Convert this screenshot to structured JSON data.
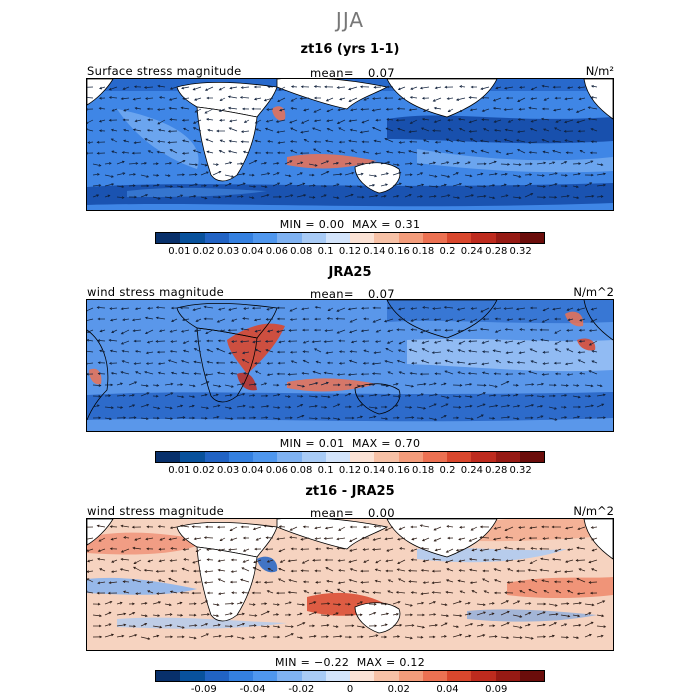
{
  "figure": {
    "season": "JJA"
  },
  "palettes": {
    "seq": [
      "#08306b",
      "#08519c",
      "#2163c4",
      "#3480e0",
      "#4f97ee",
      "#7fb2f2",
      "#a8cbf6",
      "#d3e4fb",
      "#fbe2d5",
      "#f7c1a6",
      "#f39c7b",
      "#ec7152",
      "#d9472d",
      "#be2b1e",
      "#961a14",
      "#6b0d0b"
    ],
    "div": [
      "#08306b",
      "#08519c",
      "#2163c4",
      "#3480e0",
      "#4f97ee",
      "#7fb2f2",
      "#a8cbf6",
      "#d3e4fb",
      "#fbe2d5",
      "#f7c1a6",
      "#f39c7b",
      "#ec7152",
      "#d9472d",
      "#be2b1e",
      "#961a14",
      "#6b0d0b"
    ]
  },
  "panels": [
    {
      "title": "zt16 (yrs 1-1)",
      "field_label": "Surface stress magnitude",
      "mean_label": "mean=",
      "mean_value": "0.07",
      "units": "N/m²",
      "min_label": "MIN =",
      "min_value": "0.00",
      "max_label": "MAX =",
      "max_value": "0.31",
      "ticks": [
        "0.01",
        "0.02",
        "0.03",
        "0.04",
        "0.06",
        "0.08",
        "0.1",
        "0.12",
        "0.14",
        "0.16",
        "0.18",
        "0.2",
        "0.24",
        "0.28",
        "0.32"
      ],
      "colors": {
        "ocean": "#3f86e6",
        "land": "#ffffff"
      }
    },
    {
      "title": "JRA25",
      "field_label": "wind stress magnitude",
      "mean_label": "mean=",
      "mean_value": "0.07",
      "units": "N/m^2",
      "min_label": "MIN =",
      "min_value": "0.01",
      "max_label": "MAX =",
      "max_value": "0.70",
      "ticks": [
        "0.01",
        "0.02",
        "0.03",
        "0.04",
        "0.06",
        "0.08",
        "0.1",
        "0.12",
        "0.14",
        "0.16",
        "0.18",
        "0.2",
        "0.24",
        "0.28",
        "0.32"
      ],
      "colors": {
        "ocean": "#5a97ea",
        "land": "#ffffff"
      }
    },
    {
      "title": "zt16 - JRA25",
      "field_label": "wind stress magnitude",
      "mean_label": "mean=",
      "mean_value": "0.00",
      "units": "N/m^2",
      "min_label": "MIN =",
      "min_value": "−0.22",
      "max_label": "MAX =",
      "max_value": "0.12",
      "ticks": [
        "-0.09",
        "-0.04",
        "-0.02",
        "0",
        "0.02",
        "0.04",
        "0.09"
      ],
      "colors": {
        "ocean": "#f6d3c0",
        "land": "#ffffff"
      }
    }
  ]
}
